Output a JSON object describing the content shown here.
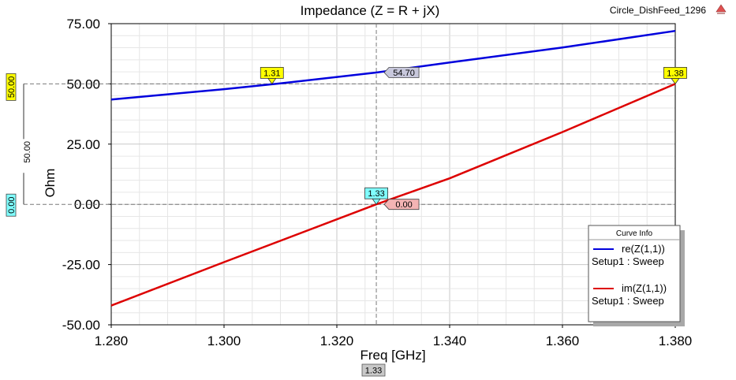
{
  "header": {
    "project_name": "Circle_DishFeed_1296"
  },
  "chart_data": {
    "type": "line",
    "title": "Impedance (Z = R + jX)",
    "xlabel": "Freq [GHz]",
    "ylabel": "Ohm",
    "xlim": [
      1.28,
      1.38
    ],
    "ylim": [
      -50,
      75
    ],
    "xticks": [
      "1.280",
      "1.300",
      "1.320",
      "1.340",
      "1.360",
      "1.380"
    ],
    "yticks": [
      "75.00",
      "50.00",
      "25.00",
      "0.00",
      "-25.00",
      "-50.00"
    ],
    "grid": true,
    "series": [
      {
        "name": "re(Z(1,1))",
        "setup": "Setup1 : Sweep",
        "color": "#0000dd",
        "x": [
          1.28,
          1.3,
          1.31,
          1.327,
          1.34,
          1.36,
          1.38
        ],
        "y": [
          43.5,
          47.8,
          50.2,
          54.7,
          58.9,
          65.1,
          72.0
        ]
      },
      {
        "name": "im(Z(1,1))",
        "setup": "Setup1 : Sweep",
        "color": "#dd0000",
        "x": [
          1.28,
          1.3,
          1.327,
          1.34,
          1.36,
          1.38
        ],
        "y": [
          -42.0,
          -24.0,
          0.0,
          10.8,
          30.0,
          50.0
        ]
      }
    ],
    "markers": [
      {
        "label": "1.31",
        "x": 1.3085,
        "y": 50.0,
        "color": "#ffff00"
      },
      {
        "label": "1.38",
        "x": 1.38,
        "y": 50.0,
        "color": "#ffff00"
      },
      {
        "label": "1.33",
        "x": 1.327,
        "y": 0.0,
        "color": "#80ffff"
      }
    ],
    "value_tags": [
      {
        "label": "54.70",
        "x": 1.327,
        "y": 54.7,
        "color": "#c8c8dc"
      },
      {
        "label": "0.00",
        "x": 1.327,
        "y": 0.0,
        "color": "#f4b4b4"
      }
    ],
    "reference_lines": {
      "x": 1.327,
      "y": [
        50.0,
        0.0
      ]
    },
    "x_cursor_label": "1.33",
    "y_tags": [
      {
        "label": "50.00",
        "y": 50.0,
        "color": "#ffff00"
      },
      {
        "label": "0.00",
        "y": 0.0,
        "color": "#80ffff"
      }
    ],
    "y_delta_label": "50.00",
    "legend": {
      "title": "Curve Info",
      "placement": "bottom-right"
    }
  }
}
